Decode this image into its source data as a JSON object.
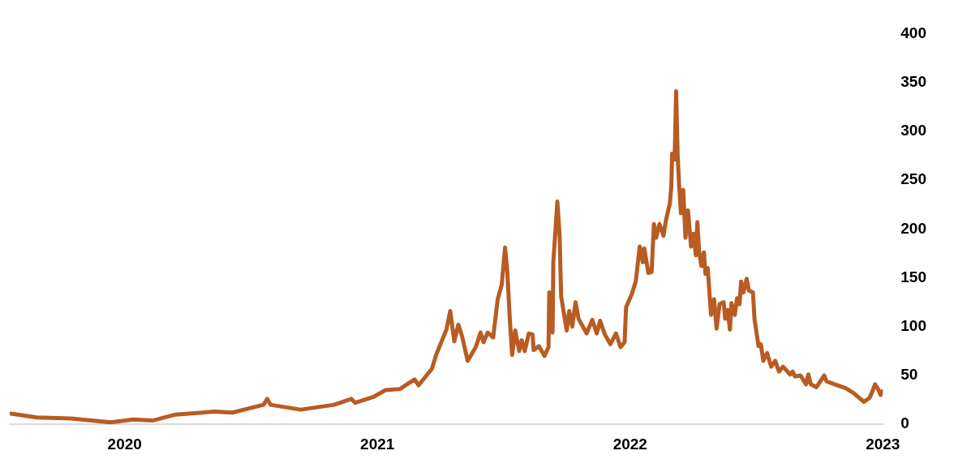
{
  "chart_data": {
    "type": "line",
    "xlim": [
      2019.545,
      2023.0
    ],
    "xticks": [
      2020,
      2021,
      2022,
      2023
    ],
    "ylim": [
      0,
      400
    ],
    "yticks": [
      0,
      50,
      100,
      150,
      200,
      250,
      300,
      350,
      400
    ],
    "grid": false,
    "legend": false,
    "marker": "none",
    "line_style": "solid",
    "series": [
      {
        "color": "#b85c22",
        "x": [
          2019.55,
          2019.652,
          2019.787,
          2019.944,
          2020.034,
          2020.113,
          2020.201,
          2020.357,
          2020.426,
          2020.549,
          2020.564,
          2020.577,
          2020.696,
          2020.828,
          2020.897,
          2020.912,
          2020.984,
          2021.031,
          2021.088,
          2021.147,
          2021.163,
          2021.216,
          2021.232,
          2021.273,
          2021.288,
          2021.304,
          2021.32,
          2021.335,
          2021.357,
          2021.389,
          2021.408,
          2021.42,
          2021.436,
          2021.458,
          2021.476,
          2021.492,
          2021.505,
          2021.514,
          2021.524,
          2021.533,
          2021.545,
          2021.561,
          2021.571,
          2021.583,
          2021.599,
          2021.614,
          2021.618,
          2021.639,
          2021.661,
          2021.677,
          2021.68,
          2021.693,
          2021.696,
          2021.712,
          2021.721,
          2021.727,
          2021.737,
          2021.749,
          2021.759,
          2021.771,
          2021.784,
          2021.796,
          2021.828,
          2021.85,
          2021.868,
          2021.881,
          2021.9,
          2021.922,
          2021.944,
          2021.962,
          2021.978,
          2021.984,
          2022.006,
          2022.022,
          2022.038,
          2022.05,
          2022.056,
          2022.072,
          2022.085,
          2022.094,
          2022.103,
          2022.116,
          2022.132,
          2022.141,
          2022.157,
          2022.163,
          2022.166,
          2022.176,
          2022.182,
          2022.188,
          2022.194,
          2022.201,
          2022.21,
          2022.219,
          2022.229,
          2022.241,
          2022.251,
          2022.26,
          2022.266,
          2022.273,
          2022.282,
          2022.292,
          2022.298,
          2022.307,
          2022.32,
          2022.332,
          2022.342,
          2022.354,
          2022.37,
          2022.376,
          2022.386,
          2022.395,
          2022.401,
          2022.414,
          2022.423,
          2022.433,
          2022.439,
          2022.448,
          2022.461,
          2022.47,
          2022.486,
          2022.492,
          2022.508,
          2022.517,
          2022.527,
          2022.542,
          2022.558,
          2022.574,
          2022.589,
          2022.605,
          2022.633,
          2022.643,
          2022.652,
          2022.674,
          2022.696,
          2022.705,
          2022.715,
          2022.737,
          2022.768,
          2022.777,
          2022.809,
          2022.853,
          2022.884,
          2022.925,
          2022.947,
          2022.956,
          2022.969,
          2022.981,
          2022.991,
          2022.997
        ],
        "values": [
          11,
          7,
          6,
          2,
          5,
          4,
          10,
          13,
          12,
          20,
          26,
          20,
          15,
          20,
          26,
          22,
          28,
          35,
          36,
          46,
          40,
          57,
          71,
          97,
          116,
          85,
          102,
          90,
          65,
          79,
          94,
          84,
          94,
          89,
          128,
          143,
          181,
          156,
          107,
          71,
          96,
          75,
          86,
          75,
          93,
          92,
          76,
          80,
          70,
          79,
          135,
          94,
          166,
          228,
          193,
          131,
          115,
          96,
          116,
          100,
          125,
          108,
          93,
          107,
          93,
          106,
          92,
          82,
          93,
          79,
          84,
          120,
          133,
          146,
          182,
          166,
          180,
          155,
          156,
          205,
          191,
          205,
          193,
          208,
          226,
          244,
          277,
          271,
          341,
          275,
          244,
          216,
          240,
          191,
          219,
          182,
          195,
          173,
          207,
          177,
          162,
          176,
          154,
          160,
          112,
          128,
          98,
          123,
          125,
          108,
          117,
          97,
          124,
          112,
          129,
          123,
          146,
          135,
          149,
          137,
          135,
          108,
          80,
          82,
          65,
          73,
          59,
          65,
          54,
          59,
          51,
          54,
          49,
          50,
          41,
          51,
          41,
          38,
          50,
          44,
          41,
          37,
          32,
          23,
          27,
          32,
          41,
          36,
          30,
          34
        ]
      }
    ]
  }
}
